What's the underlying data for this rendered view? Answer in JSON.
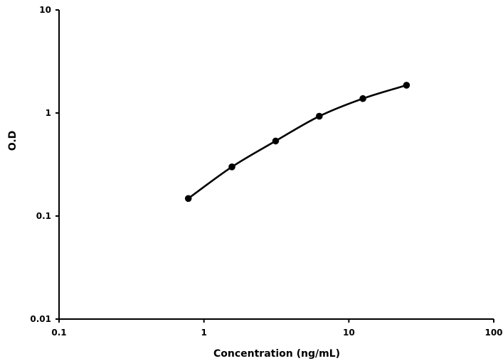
{
  "chart_data": {
    "type": "line",
    "title": "",
    "xlabel": "Concentration (ng/mL)",
    "ylabel": "O.D",
    "x_scale": "log",
    "y_scale": "log",
    "xlim": [
      0.1,
      100
    ],
    "ylim": [
      0.01,
      10
    ],
    "x_ticks": [
      "0.1",
      "1",
      "10",
      "100"
    ],
    "y_ticks": [
      "0.01",
      "0.1",
      "1",
      "10"
    ],
    "grid": false,
    "legend": "none",
    "series": [
      {
        "x": [
          0.78,
          1.56,
          3.125,
          6.25,
          12.5,
          25
        ],
        "y": [
          0.148,
          0.3,
          0.535,
          0.93,
          1.38,
          1.86
        ],
        "color": "#000000",
        "marker": "circle",
        "line": "smooth"
      }
    ]
  }
}
